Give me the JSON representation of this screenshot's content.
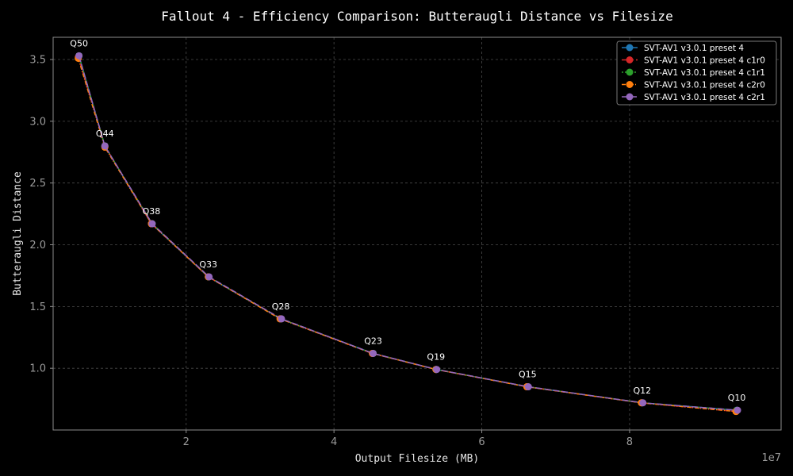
{
  "chart_data": {
    "type": "line",
    "title": "Fallout 4 - Efficiency Comparison: Butteraugli Distance vs Filesize",
    "xlabel": "Output Filesize (MB)",
    "ylabel": "Butteraugli Distance",
    "x_offset_text": "1e7",
    "xlim": [
      0.2,
      10.05
    ],
    "ylim": [
      0.5,
      3.68
    ],
    "xticks": [
      2,
      4,
      6,
      8
    ],
    "xtick_labels": [
      "2",
      "4",
      "6",
      "8"
    ],
    "yticks": [
      1.0,
      1.5,
      2.0,
      2.5,
      3.0,
      3.5
    ],
    "ytick_labels": [
      "1.0",
      "1.5",
      "2.0",
      "2.5",
      "3.0",
      "3.5"
    ],
    "grid": true,
    "legend_position": "top-right",
    "annotations": [
      "Q50",
      "Q44",
      "Q38",
      "Q33",
      "Q28",
      "Q23",
      "Q19",
      "Q15",
      "Q12",
      "Q10"
    ],
    "series": [
      {
        "name": "SVT-AV1 v3.0.1 preset 4",
        "color": "#1f77b4",
        "x": [
          0.55,
          0.9,
          1.53,
          2.3,
          3.28,
          4.53,
          5.38,
          6.62,
          8.17,
          9.45
        ],
        "y": [
          3.53,
          2.8,
          2.17,
          1.74,
          1.4,
          1.12,
          0.99,
          0.85,
          0.72,
          0.66
        ]
      },
      {
        "name": "SVT-AV1 v3.0.1 preset 4 c1r0",
        "color": "#d62728",
        "x": [
          0.54,
          0.9,
          1.53,
          2.3,
          3.28,
          4.52,
          5.38,
          6.61,
          8.16,
          9.44
        ],
        "y": [
          3.52,
          2.8,
          2.17,
          1.74,
          1.4,
          1.12,
          0.99,
          0.85,
          0.72,
          0.65
        ]
      },
      {
        "name": "SVT-AV1 v3.0.1 preset 4 c1r1",
        "color": "#2ca02c",
        "x": [
          0.55,
          0.9,
          1.54,
          2.3,
          3.28,
          4.53,
          5.38,
          6.62,
          8.17,
          9.45
        ],
        "y": [
          3.53,
          2.8,
          2.17,
          1.74,
          1.4,
          1.12,
          0.99,
          0.85,
          0.72,
          0.66
        ]
      },
      {
        "name": "SVT-AV1 v3.0.1 preset 4 c2r0",
        "color": "#ff7f0e",
        "x": [
          0.54,
          0.9,
          1.53,
          2.3,
          3.27,
          4.52,
          5.38,
          6.61,
          8.16,
          9.44
        ],
        "y": [
          3.51,
          2.79,
          2.17,
          1.74,
          1.4,
          1.12,
          0.99,
          0.85,
          0.72,
          0.65
        ]
      },
      {
        "name": "SVT-AV1 v3.0.1 preset 4 c2r1",
        "color": "#9467bd",
        "x": [
          0.55,
          0.9,
          1.54,
          2.31,
          3.29,
          4.53,
          5.39,
          6.63,
          8.18,
          9.46
        ],
        "y": [
          3.53,
          2.8,
          2.17,
          1.74,
          1.4,
          1.12,
          0.99,
          0.85,
          0.72,
          0.66
        ]
      }
    ]
  }
}
